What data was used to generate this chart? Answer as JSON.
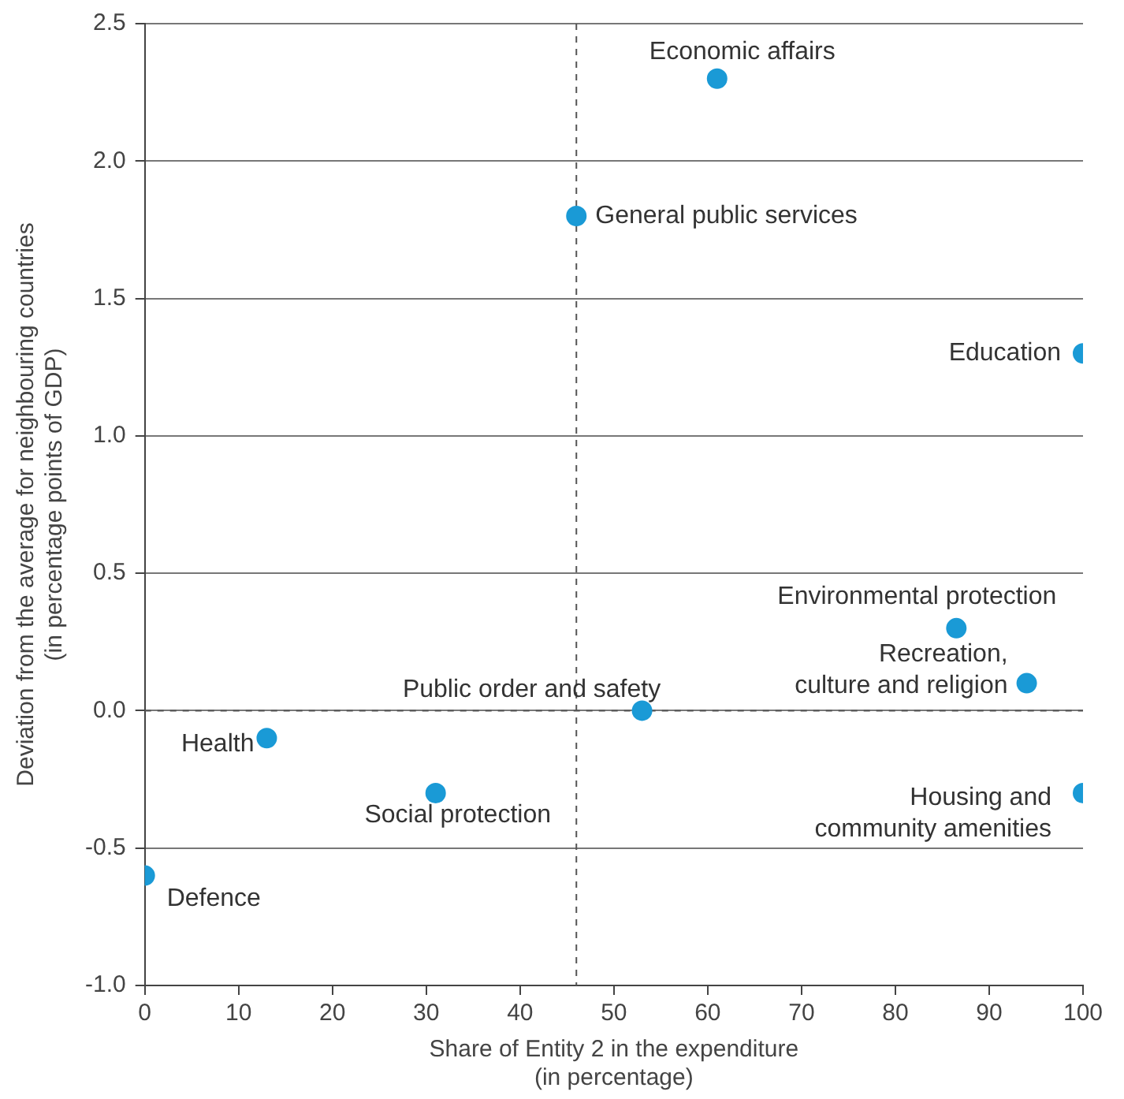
{
  "chart_data": {
    "type": "scatter",
    "xlabel": "Share of Entity 2 in the expenditure\n(in percentage)",
    "ylabel": "Deviation from the average for neighbouring countries\n(in percentage points of GDP)",
    "x": [
      61,
      46,
      100,
      86.5,
      94,
      53,
      13,
      31,
      100,
      0
    ],
    "values": [
      2.3,
      1.8,
      1.3,
      0.3,
      0.1,
      0.0,
      -0.1,
      -0.3,
      -0.3,
      -0.6
    ],
    "color": "#1a9ad6",
    "marker": "circle",
    "xlim": [
      0,
      100
    ],
    "xticks": [
      0,
      10,
      20,
      30,
      40,
      50,
      60,
      70,
      80,
      90,
      100
    ],
    "ylim": [
      -1,
      2.5
    ],
    "yticks": [
      {
        "value": -1,
        "label": "-1.0"
      },
      {
        "value": -0.5,
        "label": "-0.5"
      },
      {
        "value": 0,
        "label": "0.0"
      },
      {
        "value": 0.5,
        "label": "0.5"
      },
      {
        "value": 1,
        "label": "1.0"
      },
      {
        "value": 1.5,
        "label": "1.5"
      },
      {
        "value": 2,
        "label": "2.0"
      },
      {
        "value": 2.5,
        "label": "2.5"
      }
    ],
    "grid": "y",
    "ref_lines": [
      {
        "axis": "x",
        "value": 46,
        "line_style": "dashed"
      },
      {
        "axis": "y",
        "value": 0,
        "line_style": "dashed"
      }
    ],
    "annotations": [
      {
        "text": "Economic affairs",
        "x": 61,
        "y": 2.3
      },
      {
        "text": "General public services",
        "x": 46,
        "y": 1.8
      },
      {
        "text": "Education",
        "x": 100,
        "y": 1.3
      },
      {
        "text": "Environmental protection",
        "x": 86.5,
        "y": 0.3
      },
      {
        "text": "Recreation,\nculture and religion",
        "x": 94,
        "y": 0.1
      },
      {
        "text": "Public order and safety",
        "x": 53,
        "y": 0.0
      },
      {
        "text": "Health",
        "x": 13,
        "y": -0.1
      },
      {
        "text": "Social protection",
        "x": 31,
        "y": -0.3
      },
      {
        "text": "Housing and\ncommunity amenities",
        "x": 100,
        "y": -0.3
      },
      {
        "text": "Defence",
        "x": 0,
        "y": -0.6
      }
    ]
  }
}
